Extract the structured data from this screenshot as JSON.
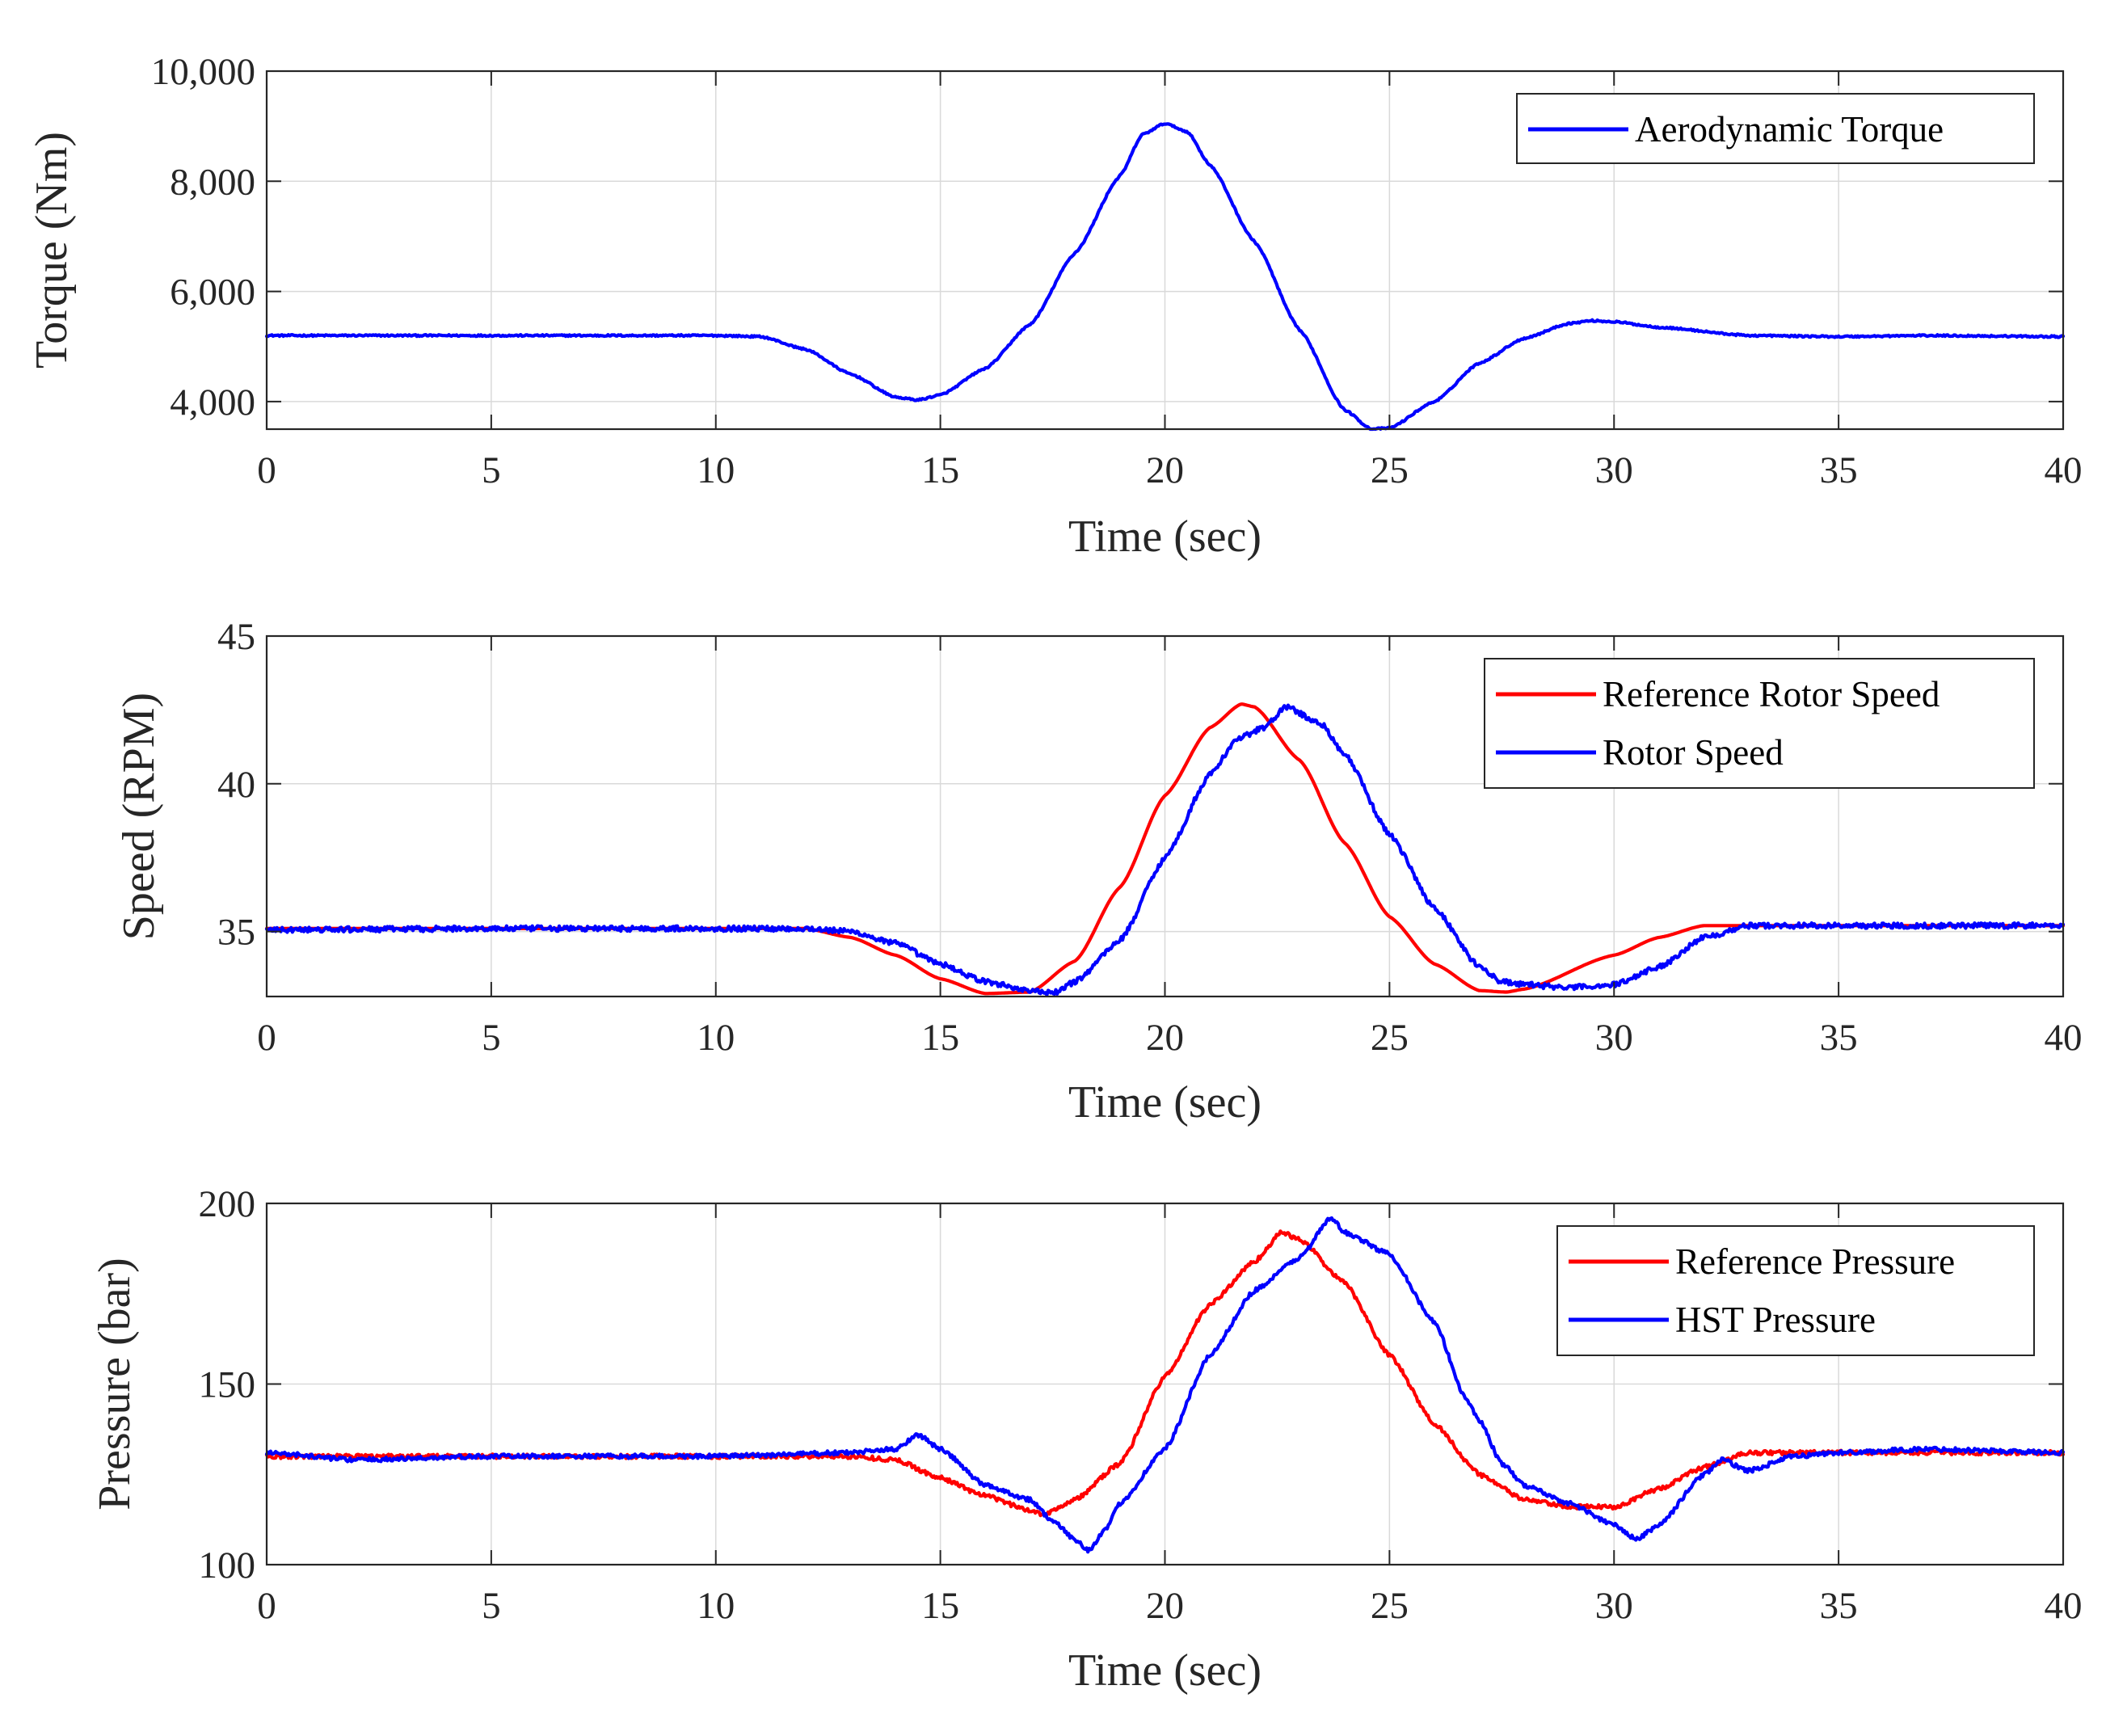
{
  "chart_data": [
    {
      "type": "line",
      "xlabel": "Time (sec)",
      "ylabel": "Torque (Nm)",
      "xlim": [
        0,
        40
      ],
      "ylim": [
        3500,
        10000
      ],
      "xticks": [
        0,
        5,
        10,
        15,
        20,
        25,
        30,
        35,
        40
      ],
      "xtick_labels": [
        "0",
        "5",
        "10",
        "15",
        "20",
        "25",
        "30",
        "35",
        "40"
      ],
      "yticks": [
        4000,
        6000,
        8000,
        10000
      ],
      "ytick_labels": [
        "4,000",
        "6,000",
        "8,000",
        "10,000"
      ],
      "grid": true,
      "legend_position": "top-right",
      "series": [
        {
          "name": "Aerodynamic Torque",
          "color": "#0000ff",
          "noise": 15,
          "points": [
            [
              0,
              5200
            ],
            [
              5,
              5200
            ],
            [
              10,
              5200
            ],
            [
              11,
              5180
            ],
            [
              12,
              4950
            ],
            [
              13,
              4500
            ],
            [
              14,
              4080
            ],
            [
              14.5,
              4030
            ],
            [
              15,
              4120
            ],
            [
              16,
              4600
            ],
            [
              17,
              5400
            ],
            [
              18,
              6700
            ],
            [
              19,
              8100
            ],
            [
              19.5,
              8850
            ],
            [
              20,
              9050
            ],
            [
              20.5,
              8900
            ],
            [
              21,
              8300
            ],
            [
              22,
              6900
            ],
            [
              23,
              5300
            ],
            [
              24,
              3850
            ],
            [
              24.6,
              3500
            ],
            [
              25,
              3520
            ],
            [
              26,
              4000
            ],
            [
              27,
              4700
            ],
            [
              28,
              5150
            ],
            [
              29,
              5420
            ],
            [
              29.5,
              5470
            ],
            [
              30,
              5450
            ],
            [
              31,
              5350
            ],
            [
              33,
              5200
            ],
            [
              35,
              5180
            ],
            [
              37,
              5200
            ],
            [
              40,
              5180
            ]
          ]
        }
      ]
    },
    {
      "type": "line",
      "xlabel": "Time (sec)",
      "ylabel": "Speed (RPM)",
      "xlim": [
        0,
        40
      ],
      "ylim": [
        32.8,
        45
      ],
      "xticks": [
        0,
        5,
        10,
        15,
        20,
        25,
        30,
        35,
        40
      ],
      "xtick_labels": [
        "0",
        "5",
        "10",
        "15",
        "20",
        "25",
        "30",
        "35",
        "40"
      ],
      "yticks": [
        35,
        40,
        45
      ],
      "ytick_labels": [
        "35",
        "40",
        "45"
      ],
      "grid": true,
      "legend_position": "top-right",
      "series": [
        {
          "name": "Reference Rotor Speed",
          "color": "#ff0000",
          "noise": 0,
          "points": [
            [
              0,
              35.1
            ],
            [
              5,
              35.1
            ],
            [
              10,
              35.1
            ],
            [
              12,
              35.1
            ],
            [
              13,
              34.8
            ],
            [
              14,
              34.2
            ],
            [
              15,
              33.4
            ],
            [
              16,
              32.9
            ],
            [
              17,
              32.95
            ],
            [
              18,
              34.0
            ],
            [
              19,
              36.5
            ],
            [
              20,
              39.6
            ],
            [
              21,
              41.9
            ],
            [
              21.7,
              42.7
            ],
            [
              22,
              42.6
            ],
            [
              23,
              40.8
            ],
            [
              24,
              38.0
            ],
            [
              25,
              35.5
            ],
            [
              26,
              33.9
            ],
            [
              27,
              33.0
            ],
            [
              27.6,
              32.95
            ],
            [
              28,
              33.05
            ],
            [
              30,
              34.2
            ],
            [
              31,
              34.8
            ],
            [
              32,
              35.2
            ],
            [
              35,
              35.2
            ],
            [
              40,
              35.2
            ]
          ]
        },
        {
          "name": "Rotor Speed",
          "color": "#0000ff",
          "noise": 0.09,
          "points": [
            [
              0,
              35.05
            ],
            [
              5,
              35.1
            ],
            [
              10,
              35.1
            ],
            [
              12,
              35.1
            ],
            [
              13,
              35.0
            ],
            [
              14,
              34.6
            ],
            [
              15,
              33.9
            ],
            [
              16,
              33.3
            ],
            [
              17,
              33.0
            ],
            [
              17.5,
              32.9
            ],
            [
              18,
              33.3
            ],
            [
              19,
              34.7
            ],
            [
              20,
              37.5
            ],
            [
              21,
              40.3
            ],
            [
              21.6,
              41.5
            ],
            [
              22.2,
              41.9
            ],
            [
              22.7,
              42.6
            ],
            [
              23.5,
              42.0
            ],
            [
              24,
              41.0
            ],
            [
              25,
              38.3
            ],
            [
              26,
              35.8
            ],
            [
              27,
              33.8
            ],
            [
              27.5,
              33.3
            ],
            [
              28,
              33.2
            ],
            [
              29,
              33.1
            ],
            [
              30,
              33.2
            ],
            [
              31,
              33.8
            ],
            [
              32,
              34.8
            ],
            [
              33,
              35.2
            ],
            [
              35,
              35.2
            ],
            [
              40,
              35.2
            ]
          ]
        }
      ]
    },
    {
      "type": "line",
      "xlabel": "Time (sec)",
      "ylabel": "Pressure (bar)",
      "xlim": [
        0,
        40
      ],
      "ylim": [
        100,
        200
      ],
      "xticks": [
        0,
        5,
        10,
        15,
        20,
        25,
        30,
        35,
        40
      ],
      "xtick_labels": [
        "0",
        "5",
        "10",
        "15",
        "20",
        "25",
        "30",
        "35",
        "40"
      ],
      "yticks": [
        100,
        150,
        200
      ],
      "ytick_labels": [
        "100",
        "150",
        "200"
      ],
      "grid": true,
      "legend_position": "top-right",
      "series": [
        {
          "name": "Reference Pressure",
          "color": "#ff0000",
          "noise": 0.6,
          "points": [
            [
              0,
              130
            ],
            [
              5,
              130
            ],
            [
              10,
              130
            ],
            [
              13,
              130
            ],
            [
              14,
              129
            ],
            [
              15,
              124
            ],
            [
              16,
              119
            ],
            [
              17,
              115
            ],
            [
              17.3,
              114
            ],
            [
              18,
              118
            ],
            [
              19,
              128
            ],
            [
              20,
              152
            ],
            [
              21,
              172
            ],
            [
              22,
              184
            ],
            [
              22.6,
              192
            ],
            [
              23,
              190
            ],
            [
              24,
              178
            ],
            [
              25,
              158
            ],
            [
              26,
              139
            ],
            [
              27,
              125
            ],
            [
              28,
              118
            ],
            [
              29,
              116
            ],
            [
              30,
              116
            ],
            [
              31,
              121
            ],
            [
              32,
              127
            ],
            [
              33,
              131
            ],
            [
              35,
              131
            ],
            [
              40,
              131
            ]
          ]
        },
        {
          "name": "HST Pressure",
          "color": "#0000ff",
          "noise": 0.6,
          "points": [
            [
              0,
              131
            ],
            [
              2,
              129
            ],
            [
              5,
              130
            ],
            [
              8,
              130
            ],
            [
              10,
              130
            ],
            [
              13,
              131
            ],
            [
              14,
              132
            ],
            [
              14.5,
              136
            ],
            [
              15,
              132
            ],
            [
              16,
              122
            ],
            [
              17,
              118
            ],
            [
              17.5,
              112
            ],
            [
              18,
              107
            ],
            [
              18.3,
              104
            ],
            [
              18.7,
              110
            ],
            [
              19,
              117
            ],
            [
              20,
              132
            ],
            [
              21,
              158
            ],
            [
              22,
              176
            ],
            [
              23,
              185
            ],
            [
              23.7,
              196
            ],
            [
              24,
              192
            ],
            [
              25,
              186
            ],
            [
              26,
              167
            ],
            [
              26.7,
              146
            ],
            [
              27,
              140
            ],
            [
              27.5,
              128
            ],
            [
              28,
              122
            ],
            [
              29,
              117
            ],
            [
              30,
              111
            ],
            [
              30.5,
              107
            ],
            [
              31,
              111
            ],
            [
              32,
              125
            ],
            [
              32.4,
              129
            ],
            [
              33,
              126
            ],
            [
              34,
              130
            ],
            [
              35,
              131
            ],
            [
              37,
              132
            ],
            [
              40,
              131
            ]
          ]
        }
      ]
    }
  ]
}
